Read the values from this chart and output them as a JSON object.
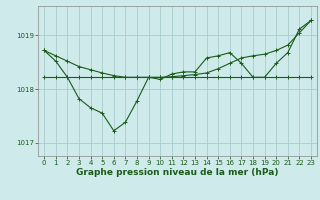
{
  "title": "Graphe pression niveau de la mer (hPa)",
  "bg_color": "#ceeaea",
  "grid_color": "#aacccc",
  "line_color": "#1a5c1a",
  "ylim": [
    1016.75,
    1019.55
  ],
  "xlim": [
    -0.5,
    23.5
  ],
  "yticks": [
    1017,
    1018,
    1019
  ],
  "xticks": [
    0,
    1,
    2,
    3,
    4,
    5,
    6,
    7,
    8,
    9,
    10,
    11,
    12,
    13,
    14,
    15,
    16,
    17,
    18,
    19,
    20,
    21,
    22,
    23
  ],
  "line1": [
    1018.72,
    1018.52,
    1018.22,
    1017.82,
    1017.65,
    1017.55,
    1017.22,
    1017.38,
    1017.78,
    1018.22,
    1018.18,
    1018.28,
    1018.32,
    1018.32,
    1018.58,
    1018.62,
    1018.68,
    1018.48,
    1018.22,
    1018.22,
    1018.48,
    1018.68,
    1019.12,
    1019.28
  ],
  "line2": [
    1018.22,
    1018.22,
    1018.22,
    1018.22,
    1018.22,
    1018.22,
    1018.22,
    1018.22,
    1018.22,
    1018.22,
    1018.22,
    1018.22,
    1018.22,
    1018.22,
    1018.22,
    1018.22,
    1018.22,
    1018.22,
    1018.22,
    1018.22,
    1018.22,
    1018.22,
    1018.22,
    1018.22
  ],
  "line3": [
    1018.72,
    1018.62,
    1018.52,
    1018.42,
    1018.36,
    1018.3,
    1018.25,
    1018.22,
    1018.22,
    1018.22,
    1018.22,
    1018.23,
    1018.25,
    1018.27,
    1018.3,
    1018.38,
    1018.48,
    1018.58,
    1018.62,
    1018.65,
    1018.72,
    1018.82,
    1019.05,
    1019.28
  ],
  "marker": "+",
  "markersize": 3,
  "linewidth": 0.8,
  "title_fontsize": 6.5,
  "tick_fontsize": 5.0
}
